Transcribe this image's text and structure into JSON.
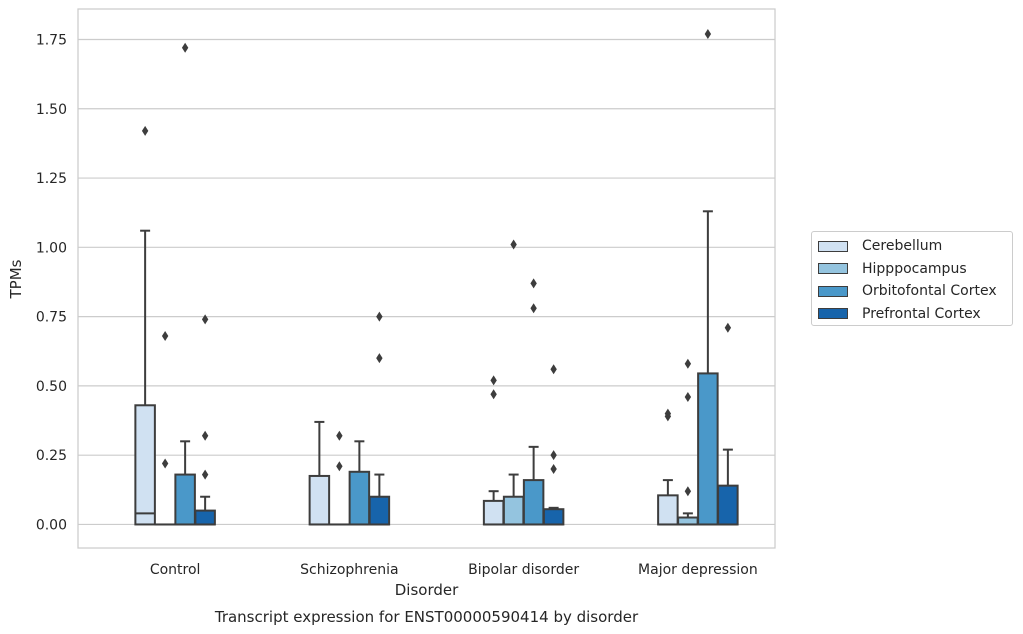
{
  "chart_data": {
    "type": "box",
    "title": "Transcript expression for ENST00000590414 by disorder",
    "xlabel": "Disorder",
    "ylabel": "TPMs",
    "ylim": [
      -0.085,
      1.86
    ],
    "yticks": [
      "0.00",
      "0.25",
      "0.50",
      "0.75",
      "1.00",
      "1.25",
      "1.50",
      "1.75"
    ],
    "categories": [
      "Control",
      "Schizophrenia",
      "Bipolar disorder",
      "Major depression"
    ],
    "grid": "horizontal",
    "legend_position": "right",
    "series": [
      {
        "name": "Cerebellum",
        "color": "#d0e1f2",
        "boxes": [
          {
            "q1": 0.0,
            "median": 0.04,
            "q3": 0.43,
            "whisker_low": 0.0,
            "whisker_high": 1.06,
            "outliers": [
              1.42
            ]
          },
          {
            "q1": 0.0,
            "median": 0.0,
            "q3": 0.175,
            "whisker_low": 0.0,
            "whisker_high": 0.37,
            "outliers": []
          },
          {
            "q1": 0.0,
            "median": 0.0,
            "q3": 0.085,
            "whisker_low": 0.0,
            "whisker_high": 0.12,
            "outliers": [
              0.47,
              0.52
            ]
          },
          {
            "q1": 0.0,
            "median": 0.0,
            "q3": 0.105,
            "whisker_low": 0.0,
            "whisker_high": 0.16,
            "outliers": [
              0.39,
              0.4
            ]
          }
        ]
      },
      {
        "name": "Hipppocampus",
        "color": "#94c4df",
        "boxes": [
          {
            "q1": 0.0,
            "median": 0.0,
            "q3": 0.0,
            "whisker_low": 0.0,
            "whisker_high": 0.0,
            "outliers": [
              0.22,
              0.68
            ]
          },
          {
            "q1": 0.0,
            "median": 0.0,
            "q3": 0.0,
            "whisker_low": 0.0,
            "whisker_high": 0.0,
            "outliers": [
              0.21,
              0.32
            ]
          },
          {
            "q1": 0.0,
            "median": 0.0,
            "q3": 0.1,
            "whisker_low": 0.0,
            "whisker_high": 0.18,
            "outliers": [
              1.01
            ]
          },
          {
            "q1": 0.0,
            "median": 0.0,
            "q3": 0.025,
            "whisker_low": 0.0,
            "whisker_high": 0.04,
            "outliers": [
              0.12,
              0.46,
              0.58
            ]
          }
        ]
      },
      {
        "name": "Orbitofontal Cortex",
        "color": "#4a98c9",
        "boxes": [
          {
            "q1": 0.0,
            "median": 0.0,
            "q3": 0.18,
            "whisker_low": 0.0,
            "whisker_high": 0.3,
            "outliers": [
              1.72
            ]
          },
          {
            "q1": 0.0,
            "median": 0.0,
            "q3": 0.19,
            "whisker_low": 0.0,
            "whisker_high": 0.3,
            "outliers": []
          },
          {
            "q1": 0.0,
            "median": 0.0,
            "q3": 0.16,
            "whisker_low": 0.0,
            "whisker_high": 0.28,
            "outliers": [
              0.78,
              0.87
            ]
          },
          {
            "q1": 0.0,
            "median": 0.0,
            "q3": 0.545,
            "whisker_low": 0.0,
            "whisker_high": 1.13,
            "outliers": [
              1.77
            ]
          }
        ]
      },
      {
        "name": "Prefrontal Cortex",
        "color": "#1764ab",
        "boxes": [
          {
            "q1": 0.0,
            "median": 0.0,
            "q3": 0.05,
            "whisker_low": 0.0,
            "whisker_high": 0.1,
            "outliers": [
              0.18,
              0.32,
              0.74
            ]
          },
          {
            "q1": 0.0,
            "median": 0.0,
            "q3": 0.1,
            "whisker_low": 0.0,
            "whisker_high": 0.18,
            "outliers": [
              0.6,
              0.75
            ]
          },
          {
            "q1": 0.0,
            "median": 0.0,
            "q3": 0.055,
            "whisker_low": 0.0,
            "whisker_high": 0.06,
            "outliers": [
              0.2,
              0.25,
              0.56
            ]
          },
          {
            "q1": 0.0,
            "median": 0.0,
            "q3": 0.14,
            "whisker_low": 0.0,
            "whisker_high": 0.27,
            "outliers": [
              0.71
            ]
          }
        ]
      }
    ]
  }
}
